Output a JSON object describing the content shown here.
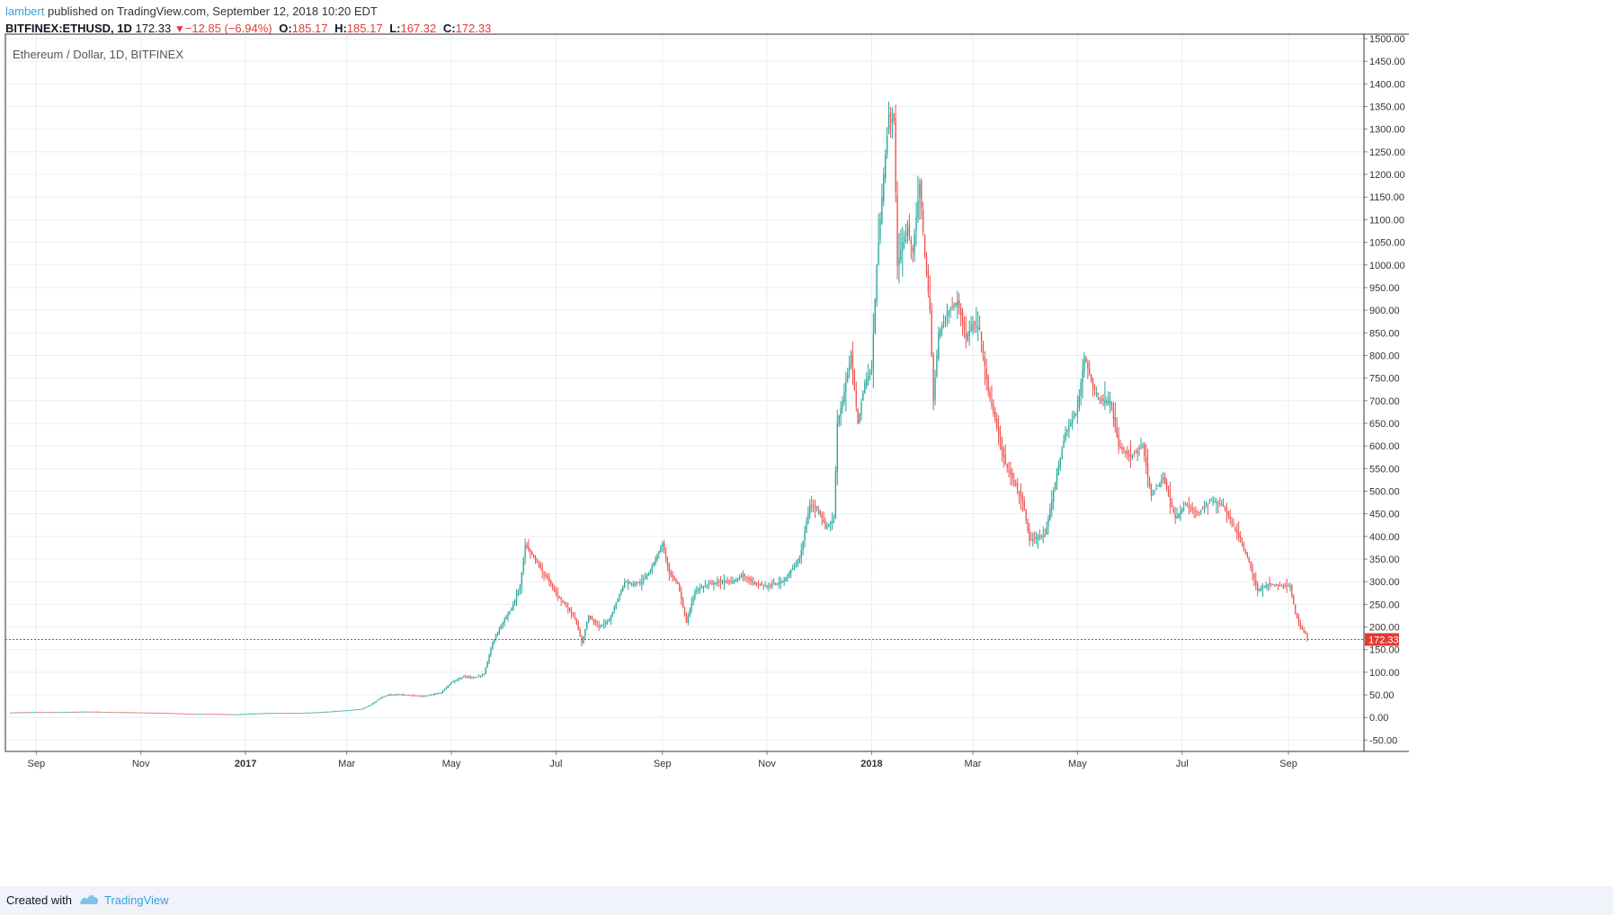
{
  "header": {
    "author": "lambert",
    "published": "published on TradingView.com, September 12, 2018 10:20 EDT",
    "symbol": "BITFINEX:ETHUSD, 1D",
    "last": "172.33",
    "change": "−12.85 (−6.94%)",
    "o_label": "O:",
    "o_value": "185.17",
    "h_label": "H:",
    "h_value": "185.17",
    "l_label": "L:",
    "l_value": "167.32",
    "c_label": "C:",
    "c_value": "172.33"
  },
  "footer": {
    "created_with": "Created with",
    "brand": "TradingView"
  },
  "colors": {
    "up": "#26a69a",
    "down": "#ef5350",
    "grid": "#e9eef3",
    "price_line": "#e53935",
    "axis_text": "#333333"
  },
  "chart_data": {
    "type": "line",
    "title": "Ethereum / Dollar, 1D, BITFINEX",
    "style": "candlestick",
    "ylabel": "",
    "xlabel": "",
    "ylim": [
      -75,
      1510
    ],
    "y_ticks": [
      -50,
      0,
      50,
      100,
      150,
      200,
      250,
      300,
      350,
      400,
      450,
      500,
      550,
      600,
      650,
      700,
      750,
      800,
      850,
      900,
      950,
      1000,
      1050,
      1100,
      1150,
      1200,
      1250,
      1300,
      1350,
      1400,
      1450,
      1500
    ],
    "y_tick_labels": [
      "-50.00",
      "0.00",
      "50.00",
      "100.00",
      "150.00",
      "200.00",
      "250.00",
      "300.00",
      "350.00",
      "400.00",
      "450.00",
      "500.00",
      "550.00",
      "600.00",
      "650.00",
      "700.00",
      "750.00",
      "800.00",
      "850.00",
      "900.00",
      "950.00",
      "1000.00",
      "1050.00",
      "1100.00",
      "1150.00",
      "1200.00",
      "1250.00",
      "1300.00",
      "1350.00",
      "1400.00",
      "1450.00",
      "1500.00"
    ],
    "xlim": [
      "2016-08-14",
      "2018-10-15"
    ],
    "x_ticks": [
      {
        "date": "2016-09-01",
        "label": "Sep",
        "bold": false
      },
      {
        "date": "2016-11-01",
        "label": "Nov",
        "bold": false
      },
      {
        "date": "2017-01-01",
        "label": "2017",
        "bold": true
      },
      {
        "date": "2017-03-01",
        "label": "Mar",
        "bold": false
      },
      {
        "date": "2017-05-01",
        "label": "May",
        "bold": false
      },
      {
        "date": "2017-07-01",
        "label": "Jul",
        "bold": false
      },
      {
        "date": "2017-09-01",
        "label": "Sep",
        "bold": false
      },
      {
        "date": "2017-11-01",
        "label": "Nov",
        "bold": false
      },
      {
        "date": "2018-01-01",
        "label": "2018",
        "bold": true
      },
      {
        "date": "2018-03-01",
        "label": "Mar",
        "bold": false
      },
      {
        "date": "2018-05-01",
        "label": "May",
        "bold": false
      },
      {
        "date": "2018-07-01",
        "label": "Jul",
        "bold": false
      },
      {
        "date": "2018-09-01",
        "label": "Sep",
        "bold": false
      }
    ],
    "last_price": 172.33,
    "last_price_label": "172.33",
    "series": [
      {
        "name": "ETHUSD",
        "points": [
          [
            "2016-08-16",
            11
          ],
          [
            "2016-09-01",
            12
          ],
          [
            "2016-09-15",
            12
          ],
          [
            "2016-10-01",
            13
          ],
          [
            "2016-10-15",
            12
          ],
          [
            "2016-11-01",
            11
          ],
          [
            "2016-11-15",
            10
          ],
          [
            "2016-12-01",
            8
          ],
          [
            "2016-12-15",
            8
          ],
          [
            "2016-12-25",
            7
          ],
          [
            "2017-01-01",
            8
          ],
          [
            "2017-01-15",
            10
          ],
          [
            "2017-02-01",
            10
          ],
          [
            "2017-02-15",
            12
          ],
          [
            "2017-03-01",
            16
          ],
          [
            "2017-03-10",
            19
          ],
          [
            "2017-03-15",
            28
          ],
          [
            "2017-03-20",
            42
          ],
          [
            "2017-03-25",
            50
          ],
          [
            "2017-04-01",
            51
          ],
          [
            "2017-04-15",
            47
          ],
          [
            "2017-04-25",
            55
          ],
          [
            "2017-05-01",
            78
          ],
          [
            "2017-05-08",
            90
          ],
          [
            "2017-05-15",
            89
          ],
          [
            "2017-05-20",
            95
          ],
          [
            "2017-05-25",
            165
          ],
          [
            "2017-05-30",
            205
          ],
          [
            "2017-06-05",
            240
          ],
          [
            "2017-06-10",
            290
          ],
          [
            "2017-06-13",
            380
          ],
          [
            "2017-06-17",
            360
          ],
          [
            "2017-06-22",
            330
          ],
          [
            "2017-06-27",
            300
          ],
          [
            "2017-07-01",
            275
          ],
          [
            "2017-07-08",
            240
          ],
          [
            "2017-07-12",
            220
          ],
          [
            "2017-07-16",
            165
          ],
          [
            "2017-07-20",
            225
          ],
          [
            "2017-07-26",
            200
          ],
          [
            "2017-08-01",
            215
          ],
          [
            "2017-08-10",
            300
          ],
          [
            "2017-08-15",
            295
          ],
          [
            "2017-08-20",
            300
          ],
          [
            "2017-08-25",
            325
          ],
          [
            "2017-09-01",
            385
          ],
          [
            "2017-09-05",
            320
          ],
          [
            "2017-09-10",
            295
          ],
          [
            "2017-09-15",
            210
          ],
          [
            "2017-09-20",
            280
          ],
          [
            "2017-09-28",
            295
          ],
          [
            "2017-10-05",
            300
          ],
          [
            "2017-10-12",
            300
          ],
          [
            "2017-10-18",
            315
          ],
          [
            "2017-10-25",
            295
          ],
          [
            "2017-11-01",
            290
          ],
          [
            "2017-11-10",
            300
          ],
          [
            "2017-11-20",
            350
          ],
          [
            "2017-11-26",
            470
          ],
          [
            "2017-12-01",
            460
          ],
          [
            "2017-12-05",
            420
          ],
          [
            "2017-12-10",
            440
          ],
          [
            "2017-12-12",
            650
          ],
          [
            "2017-12-15",
            700
          ],
          [
            "2017-12-20",
            800
          ],
          [
            "2017-12-24",
            650
          ],
          [
            "2017-12-28",
            740
          ],
          [
            "2018-01-01",
            770
          ],
          [
            "2018-01-04",
            1000
          ],
          [
            "2018-01-08",
            1200
          ],
          [
            "2018-01-11",
            1330
          ],
          [
            "2018-01-14",
            1320
          ],
          [
            "2018-01-16",
            1000
          ],
          [
            "2018-01-19",
            1050
          ],
          [
            "2018-01-22",
            1080
          ],
          [
            "2018-01-25",
            1030
          ],
          [
            "2018-01-29",
            1180
          ],
          [
            "2018-02-01",
            1020
          ],
          [
            "2018-02-04",
            900
          ],
          [
            "2018-02-06",
            700
          ],
          [
            "2018-02-09",
            850
          ],
          [
            "2018-02-15",
            900
          ],
          [
            "2018-02-20",
            920
          ],
          [
            "2018-02-25",
            840
          ],
          [
            "2018-03-01",
            870
          ],
          [
            "2018-03-05",
            860
          ],
          [
            "2018-03-10",
            720
          ],
          [
            "2018-03-15",
            640
          ],
          [
            "2018-03-20",
            560
          ],
          [
            "2018-03-25",
            520
          ],
          [
            "2018-03-30",
            480
          ],
          [
            "2018-04-03",
            390
          ],
          [
            "2018-04-08",
            400
          ],
          [
            "2018-04-12",
            400
          ],
          [
            "2018-04-18",
            520
          ],
          [
            "2018-04-24",
            630
          ],
          [
            "2018-05-01",
            680
          ],
          [
            "2018-05-05",
            800
          ],
          [
            "2018-05-10",
            730
          ],
          [
            "2018-05-15",
            700
          ],
          [
            "2018-05-20",
            700
          ],
          [
            "2018-05-25",
            600
          ],
          [
            "2018-06-01",
            575
          ],
          [
            "2018-06-08",
            600
          ],
          [
            "2018-06-13",
            490
          ],
          [
            "2018-06-20",
            530
          ],
          [
            "2018-06-27",
            440
          ],
          [
            "2018-07-03",
            470
          ],
          [
            "2018-07-10",
            450
          ],
          [
            "2018-07-18",
            480
          ],
          [
            "2018-07-25",
            470
          ],
          [
            "2018-08-01",
            415
          ],
          [
            "2018-08-08",
            355
          ],
          [
            "2018-08-14",
            280
          ],
          [
            "2018-08-20",
            295
          ],
          [
            "2018-08-28",
            290
          ],
          [
            "2018-09-02",
            290
          ],
          [
            "2018-09-05",
            230
          ],
          [
            "2018-09-08",
            200
          ],
          [
            "2018-09-11",
            185
          ],
          [
            "2018-09-12",
            172.33
          ]
        ]
      }
    ]
  }
}
